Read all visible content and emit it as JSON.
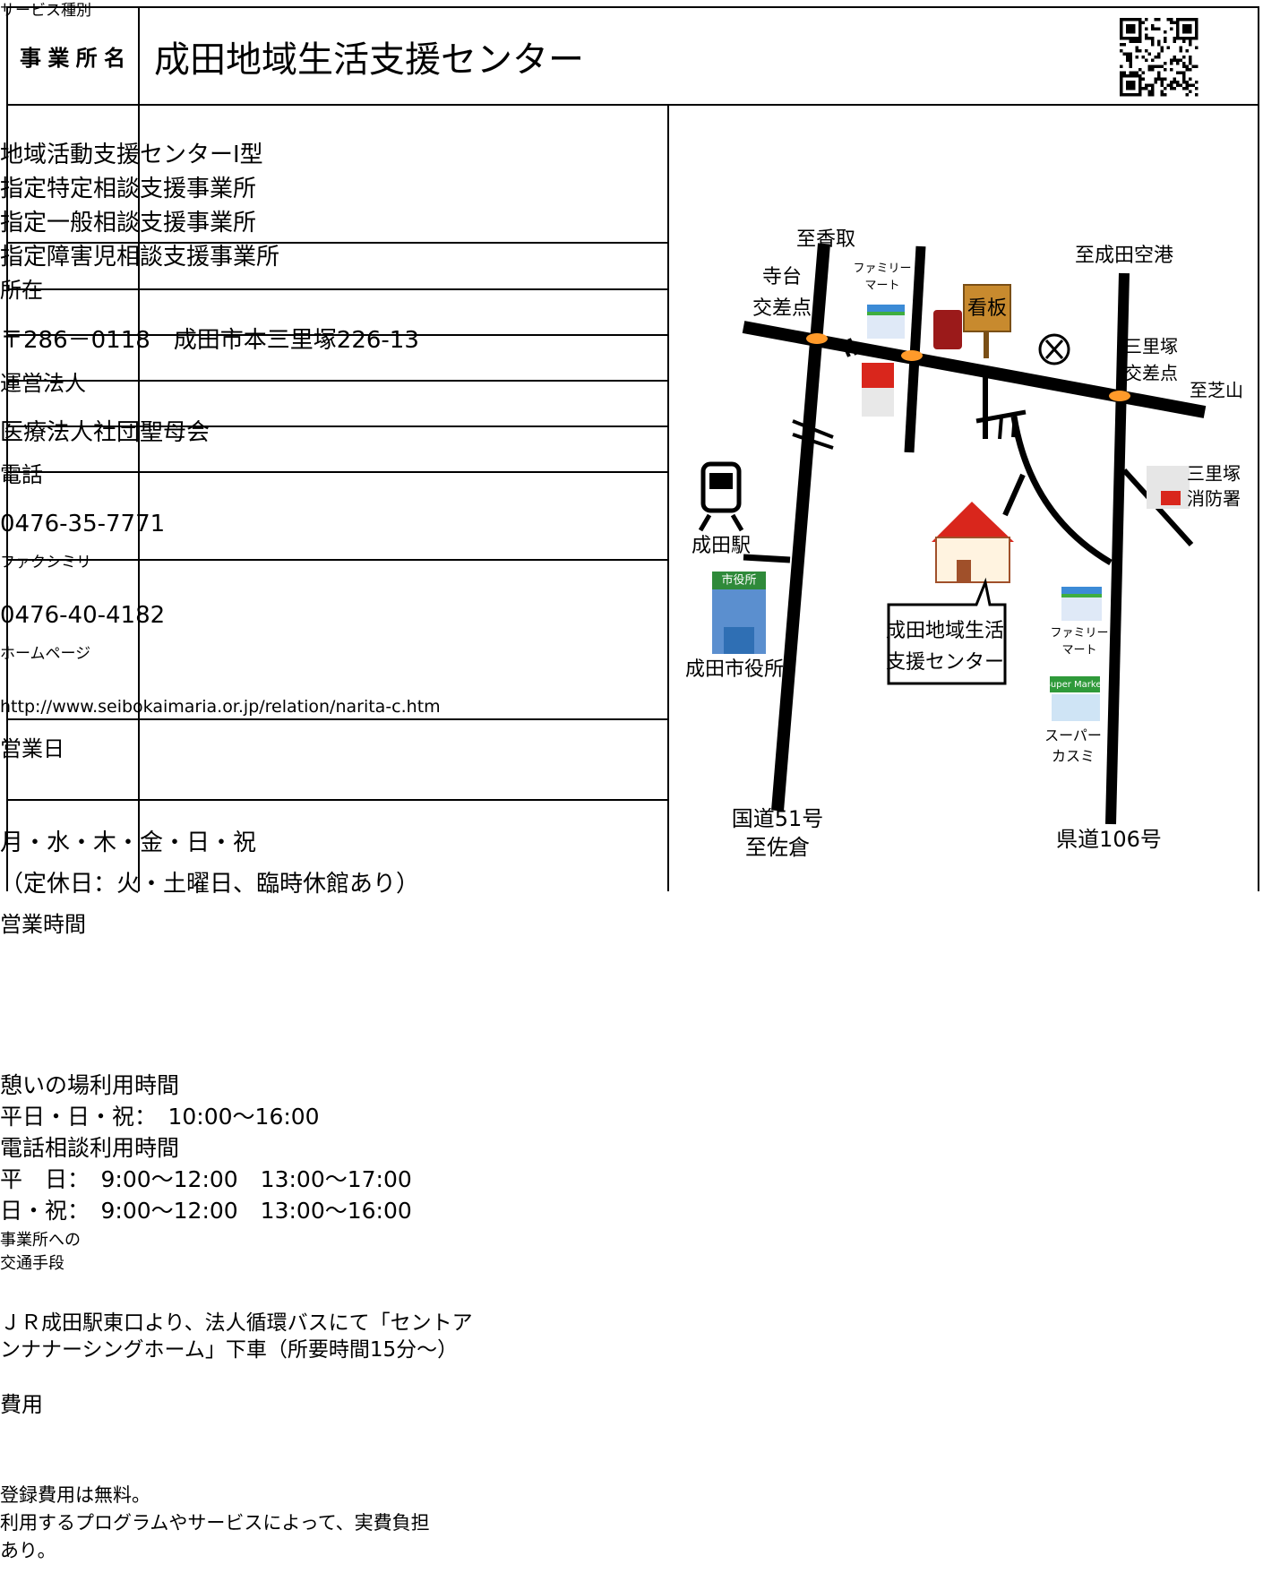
{
  "header": {
    "label": "事業所名",
    "title": "成田地域生活支援センター"
  },
  "rows": [
    {
      "label": [
        "サービス種別"
      ],
      "lines": [
        "地域活動支援センターⅠ型",
        "指定特定相談支援事業所",
        "指定一般相談支援事業所",
        "指定障害児相談支援事業所"
      ]
    },
    {
      "label": [
        "所在"
      ],
      "lines": [
        "〒286－0118　成田市本三里塚226-13"
      ]
    },
    {
      "label": [
        "運営法人"
      ],
      "lines": [
        "医療法人社団聖母会"
      ]
    },
    {
      "label": [
        "電話"
      ],
      "lines": [
        "0476-35-7771"
      ]
    },
    {
      "label": [
        "ファクシミリ"
      ],
      "lines": [
        "0476-40-4182"
      ]
    },
    {
      "label": [
        "ホームページ"
      ],
      "lines": [
        "http://www.seibokaimaria.or.jp/relation/narita-c.htm"
      ]
    },
    {
      "label": [
        "営業日"
      ],
      "lines": [
        "月・水・木・金・日・祝",
        "（定休日：火・土曜日、臨時休館あり）"
      ]
    },
    {
      "label": [
        "営業時間"
      ],
      "lines": [
        "憩いの場利用時間",
        "平日・日・祝：　10:00～16:00",
        "電話相談利用時間",
        "平　日：　9:00～12:00　13:00～17:00",
        "日・祝：　9:00～12:00　13:00～16:00"
      ]
    },
    {
      "label": [
        "事業所への",
        "交通手段"
      ],
      "lines": [
        "ＪＲ成田駅東口より、法人循環バスにて「セントア",
        "ンナナーシングホーム」下車（所要時間15分～）"
      ]
    },
    {
      "label": [
        "費用"
      ],
      "lines": [
        "登録費用は無料。",
        "利用するプログラムやサービスによって、実費負担",
        "あり。"
      ]
    }
  ],
  "map": {
    "labels": [
      "至香取",
      "寺台",
      "交差点",
      "ファミリー",
      "マート",
      "看板",
      "至成田空港",
      "三里塚",
      "交差点",
      "至芝山",
      "成田駅",
      "市役所",
      "成田市役所",
      "三里塚",
      "消防署",
      "成田地域生活",
      "支援センター",
      "ファミリー",
      "マート",
      "Super Market",
      "スーパー",
      "カスミ",
      "国道51号",
      "至佐倉",
      "県道106号"
    ]
  }
}
